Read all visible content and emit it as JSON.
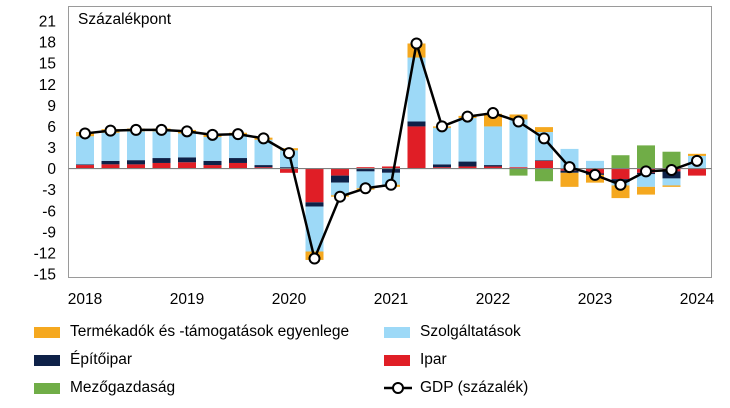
{
  "chart_data": {
    "type": "bar",
    "stacked": true,
    "ylabel": "Százalékpont",
    "ylim": [
      -15,
      21
    ],
    "yticks": [
      21,
      18,
      15,
      12,
      9,
      6,
      3,
      0,
      -3,
      -6,
      -9,
      -12,
      -15
    ],
    "xticks": [
      2018,
      2019,
      2020,
      2021,
      2022,
      2023,
      2024
    ],
    "x": [
      2018,
      2018.25,
      2018.5,
      2018.75,
      2019,
      2019.25,
      2019.5,
      2019.75,
      2020,
      2020.25,
      2020.5,
      2020.75,
      2021,
      2021.25,
      2021.5,
      2021.75,
      2022,
      2022.25,
      2022.5,
      2022.75,
      2023,
      2023.25,
      2023.5,
      2023.75,
      2024
    ],
    "grid": false,
    "legend": "bottom",
    "series": [
      {
        "name": "Termékadók és -támogatások egyenlege",
        "type": "bar",
        "color": "#F5A81F",
        "values": [
          0.6,
          0.5,
          0.4,
          0.4,
          0.5,
          0.4,
          0.4,
          0.3,
          0.3,
          -1.2,
          -0.2,
          -0.2,
          -0.3,
          2.0,
          0.2,
          0.3,
          1.8,
          0.7,
          0.7,
          -2.0,
          -1.1,
          -1.8,
          -1.1,
          -0.2,
          0.3
        ]
      },
      {
        "name": "Szolgáltatások",
        "type": "bar",
        "color": "#9DD9F7",
        "values": [
          4.0,
          4.0,
          4.1,
          3.8,
          3.4,
          3.4,
          3.2,
          3.6,
          2.4,
          -6.4,
          -1.8,
          -2.4,
          -1.7,
          9.1,
          5.2,
          6.2,
          5.5,
          6.8,
          4.0,
          2.8,
          1.1,
          -0.5,
          -1.8,
          -1.0,
          1.7
        ]
      },
      {
        "name": "Építőipar",
        "type": "bar",
        "color": "#0E2148",
        "values": [
          0.1,
          0.5,
          0.6,
          0.7,
          0.7,
          0.6,
          0.7,
          0.3,
          0.2,
          -0.6,
          -1.0,
          -0.4,
          -0.6,
          0.7,
          0.4,
          0.7,
          0.2,
          0.0,
          0.1,
          -0.3,
          -0.2,
          -0.4,
          -0.2,
          -1.0,
          0.0
        ]
      },
      {
        "name": "Ipar",
        "type": "bar",
        "color": "#E01E26",
        "values": [
          0.5,
          0.6,
          0.6,
          0.8,
          0.9,
          0.5,
          0.8,
          0.2,
          -0.6,
          -4.8,
          -1.0,
          0.2,
          0.3,
          6.0,
          0.2,
          0.3,
          0.3,
          0.2,
          1.1,
          -0.3,
          -0.7,
          -1.5,
          -0.6,
          -0.4,
          -1.0
        ]
      },
      {
        "name": "Mezőgazdaság",
        "type": "bar",
        "color": "#70AD47",
        "values": [
          0,
          0,
          0,
          0,
          0,
          0,
          0,
          0,
          0,
          0,
          0,
          0,
          0,
          0,
          0,
          0,
          0,
          -1.0,
          -1.8,
          0,
          0,
          1.9,
          3.3,
          2.4,
          0.1
        ]
      },
      {
        "name": "GDP (százalék)",
        "type": "line",
        "color": "#000000",
        "values": [
          5.0,
          5.4,
          5.5,
          5.5,
          5.3,
          4.8,
          4.9,
          4.3,
          2.2,
          -12.8,
          -4.0,
          -2.8,
          -2.3,
          17.8,
          6.0,
          7.4,
          7.9,
          6.7,
          4.3,
          0.2,
          -0.9,
          -2.3,
          -0.4,
          -0.2,
          1.1
        ]
      }
    ]
  }
}
